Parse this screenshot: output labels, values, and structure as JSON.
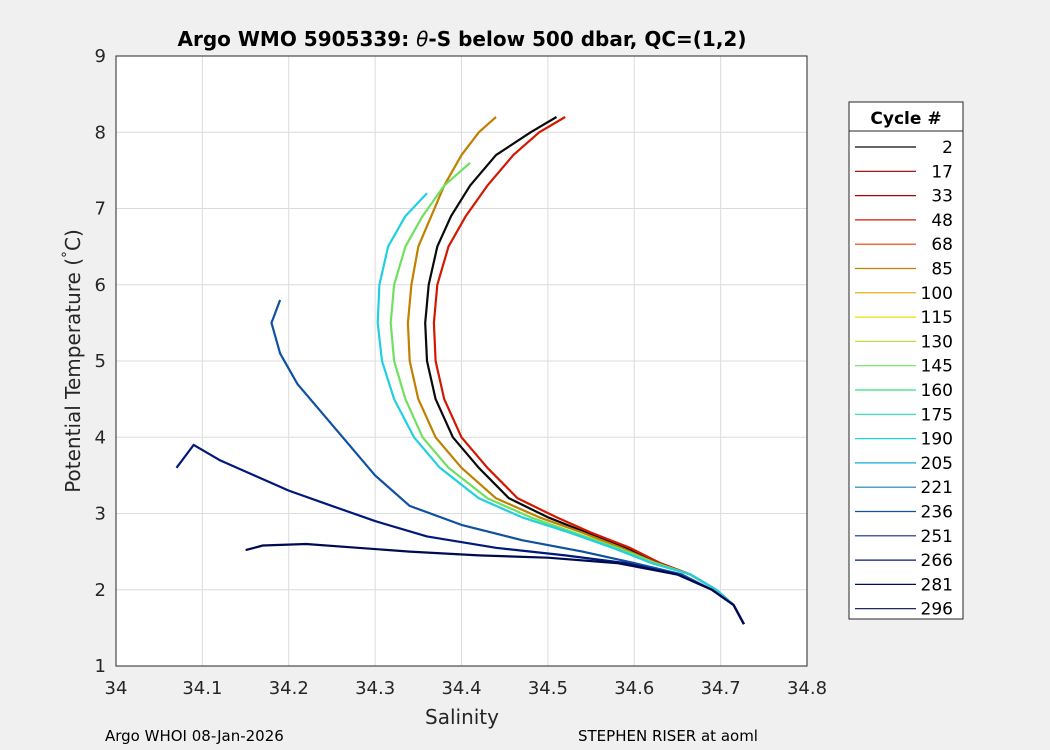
{
  "chart_data": {
    "type": "line",
    "title_prefix": "Argo WMO 5905339: ",
    "title_symbol": "θ",
    "title_suffix": "-S below 500 dbar,  QC=(1,2)",
    "xlabel": "Salinity",
    "ylabel_prefix": "Potential Temperature (",
    "ylabel_degree": "°",
    "ylabel_suffix": "C)",
    "xlim": [
      34.0,
      34.8
    ],
    "ylim": [
      1,
      9
    ],
    "xticks": [
      "34",
      "34.1",
      "34.2",
      "34.3",
      "34.4",
      "34.5",
      "34.6",
      "34.7",
      "34.8"
    ],
    "yticks": [
      "1",
      "2",
      "3",
      "4",
      "5",
      "6",
      "7",
      "8",
      "9"
    ],
    "grid": true,
    "legend": {
      "title": "Cycle #",
      "placement": "right-outside",
      "entries": [
        "2",
        "17",
        "33",
        "48",
        "68",
        "85",
        "100",
        "115",
        "130",
        "145",
        "160",
        "175",
        "190",
        "205",
        "221",
        "236",
        "251",
        "266",
        "281",
        "296"
      ],
      "colors": [
        "#0a0a0a",
        "#8b0000",
        "#b40000",
        "#d21800",
        "#e64000",
        "#c08000",
        "#e0a800",
        "#e8e000",
        "#b8e040",
        "#70e060",
        "#30e080",
        "#20e0b0",
        "#20d0e0",
        "#10a8d8",
        "#1080b8",
        "#1050a0",
        "#102888",
        "#001878",
        "#000c60",
        "#000a50"
      ]
    },
    "series": [
      {
        "cycle": "2",
        "color": "#0a0a0a",
        "x": [
          34.727,
          34.715,
          34.695,
          34.665,
          34.63,
          34.59,
          34.545,
          34.5,
          34.455,
          34.42,
          34.39,
          34.37,
          34.36,
          34.358,
          34.362,
          34.372,
          34.388,
          34.41,
          34.44,
          34.48,
          34.51
        ],
        "y": [
          1.55,
          1.8,
          2.0,
          2.2,
          2.35,
          2.55,
          2.75,
          2.95,
          3.2,
          3.6,
          4.0,
          4.5,
          5.0,
          5.5,
          6.0,
          6.5,
          6.9,
          7.3,
          7.7,
          8.0,
          8.2
        ]
      },
      {
        "cycle": "48",
        "color": "#d21800",
        "x": [
          34.727,
          34.715,
          34.695,
          34.665,
          34.63,
          34.595,
          34.55,
          34.51,
          34.465,
          34.43,
          34.4,
          34.38,
          34.37,
          34.368,
          34.372,
          34.385,
          34.405,
          34.43,
          34.46,
          34.49,
          34.52
        ],
        "y": [
          1.55,
          1.8,
          2.0,
          2.2,
          2.35,
          2.55,
          2.75,
          2.95,
          3.2,
          3.6,
          4.0,
          4.5,
          5.0,
          5.5,
          6.0,
          6.5,
          6.9,
          7.3,
          7.7,
          8.0,
          8.2
        ]
      },
      {
        "cycle": "85",
        "color": "#c08000",
        "x": [
          34.727,
          34.715,
          34.695,
          34.665,
          34.625,
          34.585,
          34.54,
          34.49,
          34.44,
          34.4,
          34.37,
          34.35,
          34.34,
          34.338,
          34.342,
          34.35,
          34.365,
          34.38,
          34.4,
          34.42,
          34.44
        ],
        "y": [
          1.55,
          1.8,
          2.0,
          2.2,
          2.35,
          2.55,
          2.75,
          2.95,
          3.2,
          3.6,
          4.0,
          4.5,
          5.0,
          5.5,
          6.0,
          6.5,
          6.9,
          7.3,
          7.7,
          8.0,
          8.2
        ]
      },
      {
        "cycle": "145",
        "color": "#70e060",
        "x": [
          34.727,
          34.715,
          34.695,
          34.665,
          34.625,
          34.58,
          34.53,
          34.48,
          34.43,
          34.385,
          34.355,
          34.335,
          34.322,
          34.318,
          34.322,
          34.335,
          34.355,
          34.38,
          34.41
        ],
        "y": [
          1.55,
          1.8,
          2.0,
          2.2,
          2.35,
          2.55,
          2.75,
          2.95,
          3.2,
          3.6,
          4.0,
          4.5,
          5.0,
          5.5,
          6.0,
          6.5,
          6.9,
          7.3,
          7.6
        ]
      },
      {
        "cycle": "190",
        "color": "#20d0e0",
        "x": [
          34.727,
          34.715,
          34.695,
          34.665,
          34.62,
          34.575,
          34.525,
          34.47,
          34.42,
          34.375,
          34.345,
          34.322,
          34.308,
          34.303,
          34.305,
          34.315,
          34.335,
          34.36
        ],
        "y": [
          1.55,
          1.8,
          2.0,
          2.2,
          2.35,
          2.55,
          2.75,
          2.95,
          3.2,
          3.6,
          4.0,
          4.5,
          5.0,
          5.5,
          6.0,
          6.5,
          6.9,
          7.2
        ]
      },
      {
        "cycle": "236",
        "color": "#1050a0",
        "x": [
          34.727,
          34.715,
          34.69,
          34.655,
          34.6,
          34.54,
          34.47,
          34.4,
          34.34,
          34.3,
          34.27,
          34.24,
          34.21,
          34.19,
          34.18,
          34.19
        ],
        "y": [
          1.55,
          1.8,
          2.0,
          2.2,
          2.35,
          2.5,
          2.65,
          2.85,
          3.1,
          3.5,
          3.9,
          4.3,
          4.7,
          5.1,
          5.5,
          5.8
        ]
      },
      {
        "cycle": "266",
        "color": "#001878",
        "x": [
          34.727,
          34.715,
          34.69,
          34.65,
          34.59,
          34.52,
          34.44,
          34.36,
          34.3,
          34.25,
          34.2,
          34.16,
          34.12,
          34.09,
          34.07
        ],
        "y": [
          1.55,
          1.8,
          2.0,
          2.2,
          2.35,
          2.45,
          2.55,
          2.7,
          2.9,
          3.1,
          3.3,
          3.5,
          3.7,
          3.9,
          3.6
        ]
      },
      {
        "cycle": "296",
        "color": "#000a50",
        "x": [
          34.727,
          34.715,
          34.69,
          34.65,
          34.58,
          34.5,
          34.42,
          34.34,
          34.28,
          34.22,
          34.17,
          34.15
        ],
        "y": [
          1.55,
          1.8,
          2.0,
          2.2,
          2.35,
          2.42,
          2.45,
          2.5,
          2.55,
          2.6,
          2.58,
          2.52
        ]
      }
    ]
  },
  "footer": {
    "left": "Argo WHOI 08-Jan-2026",
    "right": "STEPHEN RISER at aoml"
  }
}
